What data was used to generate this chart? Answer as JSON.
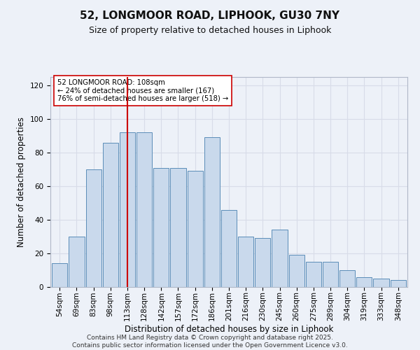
{
  "title1": "52, LONGMOOR ROAD, LIPHOOK, GU30 7NY",
  "title2": "Size of property relative to detached houses in Liphook",
  "xlabel": "Distribution of detached houses by size in Liphook",
  "ylabel": "Number of detached properties",
  "categories": [
    "54sqm",
    "69sqm",
    "83sqm",
    "98sqm",
    "113sqm",
    "128sqm",
    "142sqm",
    "157sqm",
    "172sqm",
    "186sqm",
    "201sqm",
    "216sqm",
    "230sqm",
    "245sqm",
    "260sqm",
    "275sqm",
    "289sqm",
    "304sqm",
    "319sqm",
    "333sqm",
    "348sqm"
  ],
  "values": [
    14,
    30,
    70,
    86,
    92,
    92,
    71,
    71,
    69,
    89,
    46,
    30,
    29,
    34,
    19,
    15,
    15,
    10,
    6,
    5,
    4
  ],
  "bar_color": "#c9d9ec",
  "bar_edge_color": "#5b8db8",
  "vline_x": 4,
  "vline_color": "#cc0000",
  "annotation_text": "52 LONGMOOR ROAD: 108sqm\n← 24% of detached houses are smaller (167)\n76% of semi-detached houses are larger (518) →",
  "annotation_box_color": "#ffffff",
  "annotation_box_edge": "#cc0000",
  "ylim": [
    0,
    125
  ],
  "yticks": [
    0,
    20,
    40,
    60,
    80,
    100,
    120
  ],
  "grid_color": "#d8dce8",
  "background_color": "#edf1f8",
  "footer_line1": "Contains HM Land Registry data © Crown copyright and database right 2025.",
  "footer_line2": "Contains public sector information licensed under the Open Government Licence v3.0.",
  "title_fontsize": 11,
  "subtitle_fontsize": 9,
  "axis_label_fontsize": 8.5,
  "tick_fontsize": 7.5,
  "footer_fontsize": 6.5
}
